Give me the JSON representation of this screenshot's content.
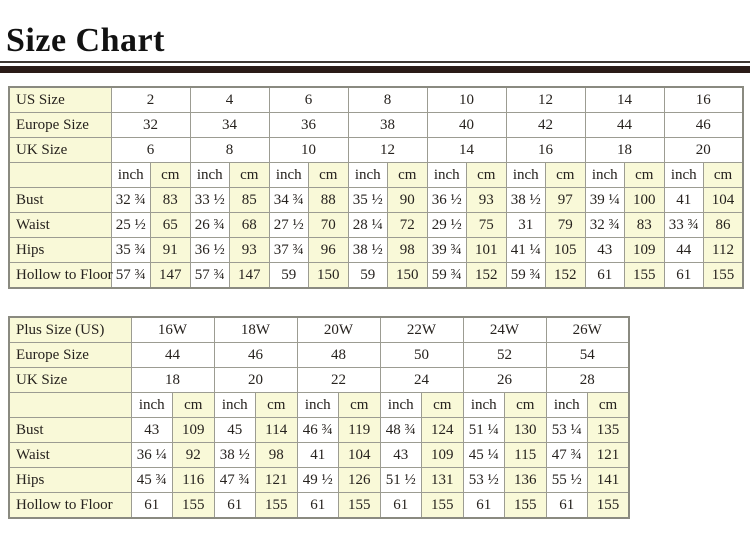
{
  "page": {
    "title": "Size Chart"
  },
  "colors": {
    "cream_cell": "#f9f9d8",
    "table_border": "#9c9c92",
    "divider_bar": "#2a1b17",
    "text": "#26221e"
  },
  "tables": [
    {
      "name": "standard-size-table",
      "size_rows": [
        {
          "label": "US Size",
          "values": [
            "2",
            "4",
            "6",
            "8",
            "10",
            "12",
            "14",
            "16"
          ]
        },
        {
          "label": "Europe Size",
          "values": [
            "32",
            "34",
            "36",
            "38",
            "40",
            "42",
            "44",
            "46"
          ]
        },
        {
          "label": "UK Size",
          "values": [
            "6",
            "8",
            "10",
            "12",
            "14",
            "16",
            "18",
            "20"
          ]
        }
      ],
      "unit_labels": [
        "inch",
        "cm"
      ],
      "measure_rows": [
        {
          "label": "Bust",
          "cells": [
            "32 ¾",
            "83",
            "33 ½",
            "85",
            "34 ¾",
            "88",
            "35 ½",
            "90",
            "36 ½",
            "93",
            "38 ½",
            "97",
            "39 ¼",
            "100",
            "41",
            "104"
          ]
        },
        {
          "label": "Waist",
          "cells": [
            "25 ½",
            "65",
            "26 ¾",
            "68",
            "27 ½",
            "70",
            "28 ¼",
            "72",
            "29 ½",
            "75",
            "31",
            "79",
            "32 ¾",
            "83",
            "33 ¾",
            "86"
          ]
        },
        {
          "label": "Hips",
          "cells": [
            "35 ¾",
            "91",
            "36 ½",
            "93",
            "37 ¾",
            "96",
            "38 ½",
            "98",
            "39 ¾",
            "101",
            "41 ¼",
            "105",
            "43",
            "109",
            "44",
            "112"
          ]
        },
        {
          "label": "Hollow to Floor",
          "cells": [
            "57 ¾",
            "147",
            "57 ¾",
            "147",
            "59",
            "150",
            "59",
            "150",
            "59 ¾",
            "152",
            "59 ¾",
            "152",
            "61",
            "155",
            "61",
            "155"
          ]
        }
      ]
    },
    {
      "name": "plus-size-table",
      "size_rows": [
        {
          "label": "Plus Size (US)",
          "values": [
            "16W",
            "18W",
            "20W",
            "22W",
            "24W",
            "26W"
          ]
        },
        {
          "label": "Europe Size",
          "values": [
            "44",
            "46",
            "48",
            "50",
            "52",
            "54"
          ]
        },
        {
          "label": "UK Size",
          "values": [
            "18",
            "20",
            "22",
            "24",
            "26",
            "28"
          ]
        }
      ],
      "unit_labels": [
        "inch",
        "cm"
      ],
      "measure_rows": [
        {
          "label": "Bust",
          "cells": [
            "43",
            "109",
            "45",
            "114",
            "46 ¾",
            "119",
            "48 ¾",
            "124",
            "51 ¼",
            "130",
            "53 ¼",
            "135"
          ]
        },
        {
          "label": "Waist",
          "cells": [
            "36 ¼",
            "92",
            "38 ½",
            "98",
            "41",
            "104",
            "43",
            "109",
            "45 ¼",
            "115",
            "47 ¾",
            "121"
          ]
        },
        {
          "label": "Hips",
          "cells": [
            "45 ¾",
            "116",
            "47 ¾",
            "121",
            "49 ½",
            "126",
            "51 ½",
            "131",
            "53 ½",
            "136",
            "55 ½",
            "141"
          ]
        },
        {
          "label": "Hollow to Floor",
          "cells": [
            "61",
            "155",
            "61",
            "155",
            "61",
            "155",
            "61",
            "155",
            "61",
            "155",
            "61",
            "155"
          ]
        }
      ]
    }
  ]
}
